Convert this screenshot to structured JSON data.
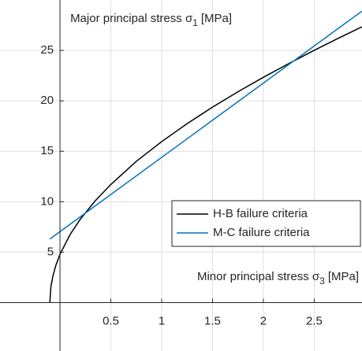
{
  "chart_data": {
    "type": "line",
    "xlabel": {
      "text": "Minor principal stress σ",
      "sub": "3",
      "unit": "[MPa]"
    },
    "ylabel": {
      "text": "Major principal stress σ",
      "sub": "1",
      "unit": "[MPa]"
    },
    "xlim": [
      -0.59,
      2.97
    ],
    "ylim": [
      -4.8,
      30
    ],
    "xticks": [
      0.5,
      1,
      1.5,
      2,
      2.5
    ],
    "yticks": [
      5,
      10,
      15,
      20,
      25
    ],
    "grid": true,
    "legend": "lower right",
    "series": [
      {
        "name": "H-B failure criteria",
        "color": "#000000",
        "x": [
          -0.1,
          -0.09,
          -0.07,
          -0.04,
          0,
          0.1,
          0.2,
          0.35,
          0.5,
          0.75,
          1,
          1.25,
          1.5,
          1.75,
          2,
          2.25,
          2.5,
          2.75,
          2.97
        ],
        "values": [
          0,
          1.51,
          2.63,
          3.72,
          4.79,
          6.76,
          8.27,
          10.13,
          11.71,
          14.0,
          15.96,
          17.74,
          19.38,
          20.9,
          22.34,
          23.7,
          25.01,
          26.27,
          27.34
        ]
      },
      {
        "name": "M-C failure criteria",
        "color": "#0072bd",
        "x": [
          -0.1,
          2.97
        ],
        "values": [
          6.3,
          28.9
        ]
      }
    ]
  }
}
